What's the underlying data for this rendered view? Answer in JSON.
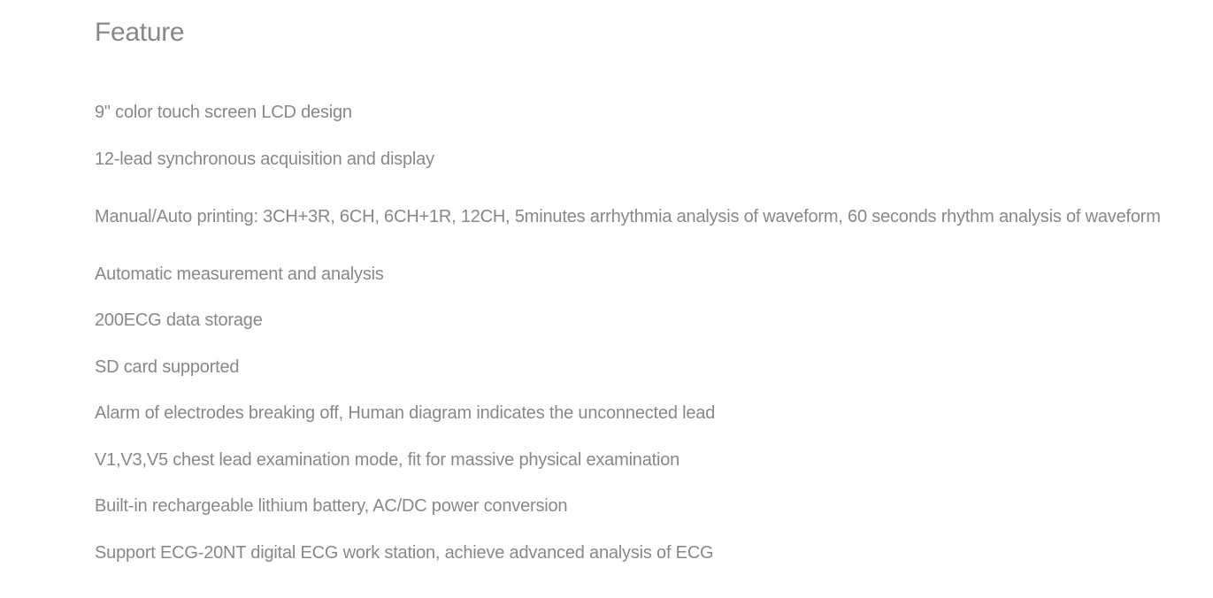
{
  "heading": "Feature",
  "features": {
    "item0": "9\" color touch screen LCD design",
    "item1": "12-lead synchronous acquisition and display",
    "item2": "Manual/Auto printing: 3CH+3R, 6CH, 6CH+1R, 12CH, 5minutes arrhythmia analysis of waveform, 60 seconds rhythm analysis of waveform",
    "item3": "Automatic measurement and analysis",
    "item4": "200ECG data storage",
    "item5": "SD card supported",
    "item6": "Alarm of electrodes breaking off, Human diagram indicates the unconnected lead",
    "item7": "V1,V3,V5 chest lead examination mode, fit for massive physical examination",
    "item8": "Built-in rechargeable lithium battery, AC/DC power conversion",
    "item9": "Support ECG-20NT digital ECG work station, achieve advanced analysis of ECG"
  },
  "styles": {
    "heading_color": "#888888",
    "heading_fontsize": 30,
    "text_color": "#888888",
    "text_fontsize": 20,
    "background_color": "#ffffff",
    "font_weight": 300,
    "line_spacing": 52
  }
}
